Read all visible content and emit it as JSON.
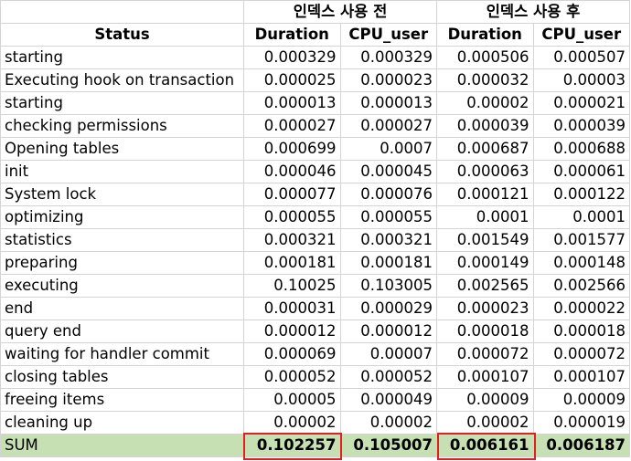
{
  "header": {
    "group_before": "인덱스 사용 전",
    "group_after": "인덱스 사용 후",
    "col_status": "Status",
    "col_duration_before": "Duration",
    "col_cpu_before": "CPU_user",
    "col_duration_after": "Duration",
    "col_cpu_after": "CPU_user"
  },
  "rows": [
    {
      "status": "starting",
      "dur_before": "0.000329",
      "cpu_before": "0.000329",
      "dur_after": "0.000506",
      "cpu_after": "0.000507"
    },
    {
      "status": "Executing hook on transaction",
      "dur_before": "0.000025",
      "cpu_before": "0.000023",
      "dur_after": "0.000032",
      "cpu_after": "0.00003"
    },
    {
      "status": "starting",
      "dur_before": "0.000013",
      "cpu_before": "0.000013",
      "dur_after": "0.00002",
      "cpu_after": "0.000021"
    },
    {
      "status": "checking permissions",
      "dur_before": "0.000027",
      "cpu_before": "0.000027",
      "dur_after": "0.000039",
      "cpu_after": "0.000039"
    },
    {
      "status": "Opening tables",
      "dur_before": "0.000699",
      "cpu_before": "0.0007",
      "dur_after": "0.000687",
      "cpu_after": "0.000688"
    },
    {
      "status": "init",
      "dur_before": "0.000046",
      "cpu_before": "0.000045",
      "dur_after": "0.000063",
      "cpu_after": "0.000061"
    },
    {
      "status": "System lock",
      "dur_before": "0.000077",
      "cpu_before": "0.000076",
      "dur_after": "0.000121",
      "cpu_after": "0.000122"
    },
    {
      "status": "optimizing",
      "dur_before": "0.000055",
      "cpu_before": "0.000055",
      "dur_after": "0.0001",
      "cpu_after": "0.0001"
    },
    {
      "status": "statistics",
      "dur_before": "0.000321",
      "cpu_before": "0.000321",
      "dur_after": "0.001549",
      "cpu_after": "0.001577"
    },
    {
      "status": "preparing",
      "dur_before": "0.000181",
      "cpu_before": "0.000181",
      "dur_after": "0.000149",
      "cpu_after": "0.000148"
    },
    {
      "status": "executing",
      "dur_before": "0.10025",
      "cpu_before": "0.103005",
      "dur_after": "0.002565",
      "cpu_after": "0.002566"
    },
    {
      "status": "end",
      "dur_before": "0.000031",
      "cpu_before": "0.000029",
      "dur_after": "0.000023",
      "cpu_after": "0.000022"
    },
    {
      "status": "query end",
      "dur_before": "0.000012",
      "cpu_before": "0.000012",
      "dur_after": "0.000018",
      "cpu_after": "0.000018"
    },
    {
      "status": "waiting for handler commit",
      "dur_before": "0.000069",
      "cpu_before": "0.00007",
      "dur_after": "0.000072",
      "cpu_after": "0.000072"
    },
    {
      "status": "closing tables",
      "dur_before": "0.000052",
      "cpu_before": "0.000052",
      "dur_after": "0.000107",
      "cpu_after": "0.000107"
    },
    {
      "status": "freeing items",
      "dur_before": "0.00005",
      "cpu_before": "0.000049",
      "dur_after": "0.00009",
      "cpu_after": "0.00009"
    },
    {
      "status": "cleaning up",
      "dur_before": "0.00002",
      "cpu_before": "0.00002",
      "dur_after": "0.00002",
      "cpu_after": "0.000019"
    }
  ],
  "sum": {
    "status": "SUM",
    "dur_before": "0.102257",
    "cpu_before": "0.105007",
    "dur_after": "0.006161",
    "cpu_after": "0.006187"
  },
  "colors": {
    "sum_row_bg": "#c6e0b4",
    "highlight_border": "#e02020",
    "grid_line": "#d4d4d4"
  }
}
